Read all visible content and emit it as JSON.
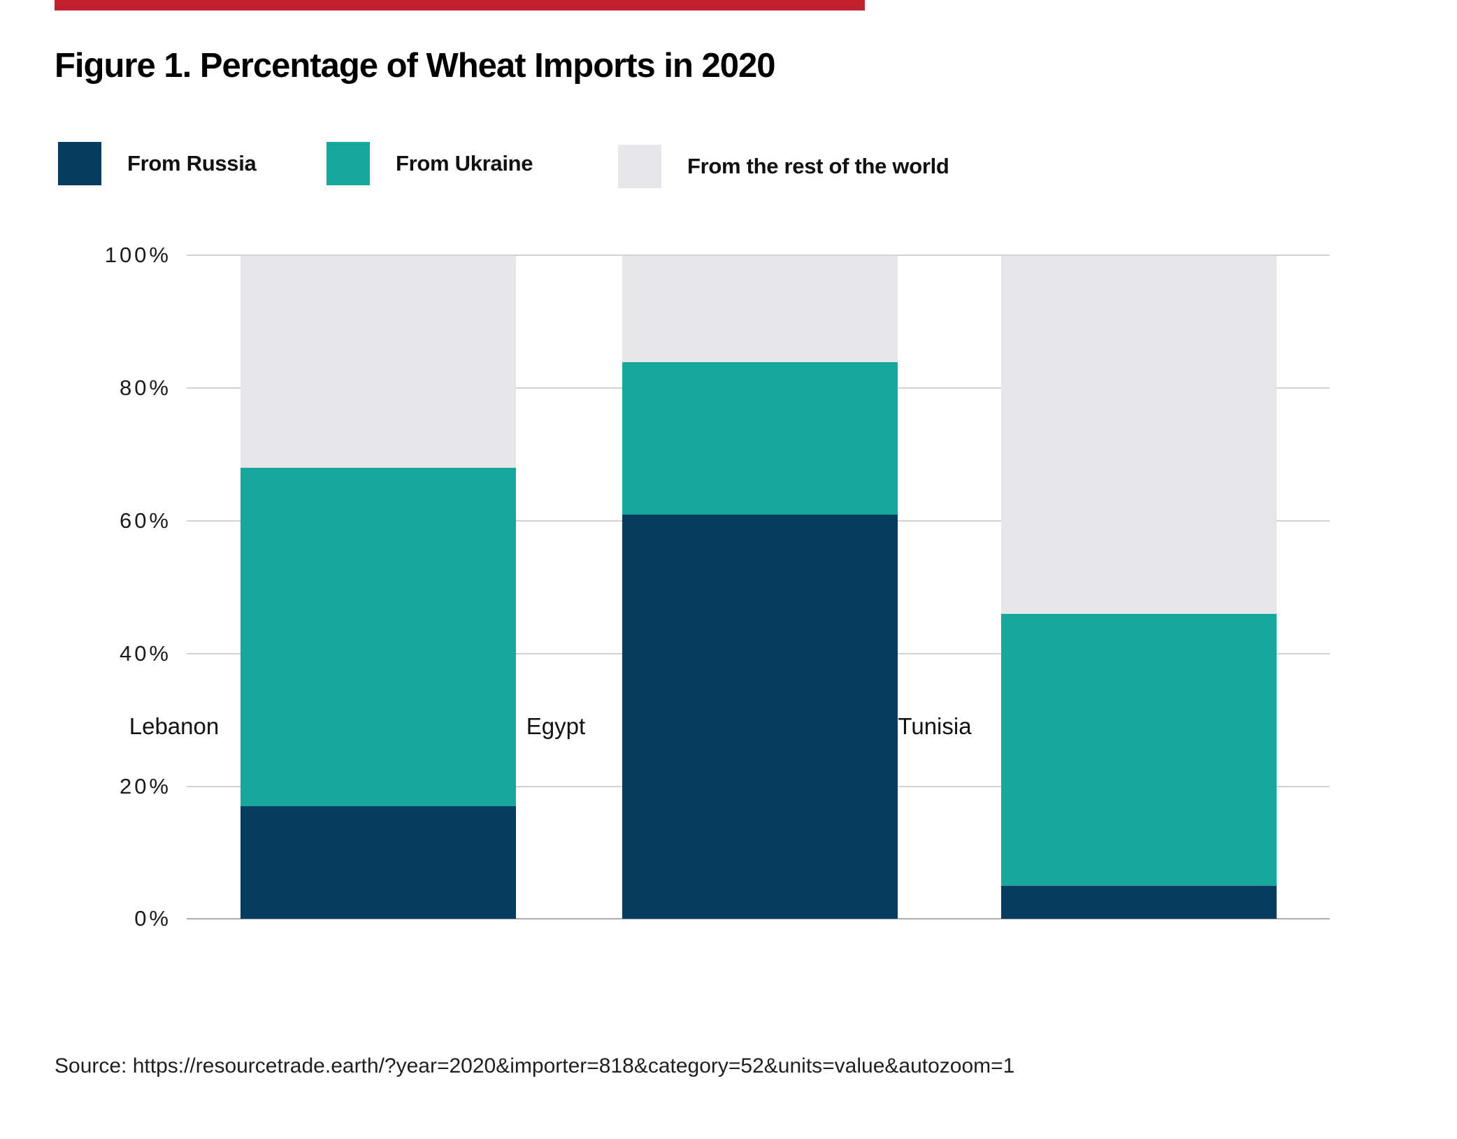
{
  "accent_bar_color": "#c2202f",
  "title": "Figure 1. Percentage of Wheat Imports in 2020",
  "legend": {
    "items": [
      {
        "label": "From Russia",
        "color": "#063c5f"
      },
      {
        "label": "From Ukraine",
        "color": "#16a79d"
      },
      {
        "label": "From the rest of the world",
        "color": "#e7e7e9"
      }
    ]
  },
  "axis": {
    "ticks_top_to_bottom": [
      "100%",
      "80%",
      "60%",
      "40%",
      "20%",
      "0%"
    ]
  },
  "chart_data": {
    "type": "bar",
    "stacked": true,
    "title": "Figure 1. Percentage of Wheat Imports in 2020",
    "categories": [
      "Lebanon",
      "Egypt",
      "Tunisia"
    ],
    "series": [
      {
        "name": "From Russia",
        "color": "#063c5f",
        "values": [
          17,
          61,
          5
        ]
      },
      {
        "name": "From Ukraine",
        "color": "#16a79d",
        "values": [
          51,
          23,
          41
        ]
      },
      {
        "name": "From the rest of the world",
        "color": "#e7e7e9",
        "values": [
          32,
          16,
          54
        ]
      }
    ],
    "xlabel": "",
    "ylabel": "",
    "ylim": [
      0,
      100
    ],
    "yticks": [
      "0%",
      "20%",
      "40%",
      "60%",
      "80%",
      "100%"
    ],
    "grid": true,
    "gridline_color": "#d2d2d2",
    "legend_position": "top"
  },
  "source": "Source: https://resourcetrade.earth/?year=2020&importer=818&category=52&units=value&autozoom=1"
}
